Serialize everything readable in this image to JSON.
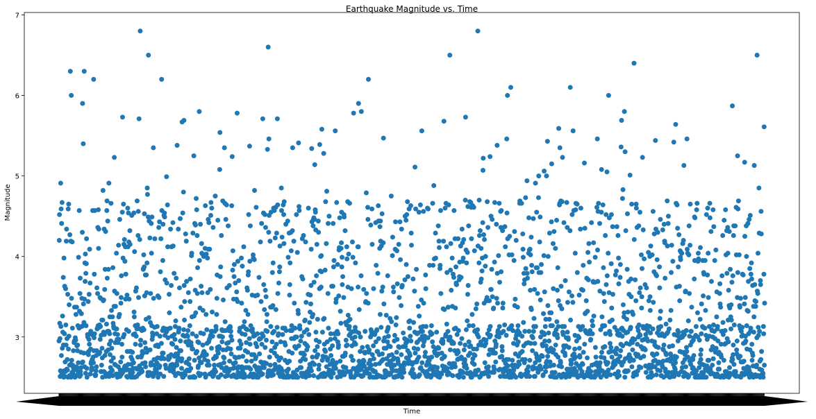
{
  "chart_data": {
    "type": "scatter",
    "title": "Earthquake Magnitude vs. Time",
    "xlabel": "Time",
    "ylabel": "Magnitude",
    "ylim": [
      2.3,
      7.03
    ],
    "yticks": [
      3,
      4,
      5,
      6,
      7
    ],
    "grid": false,
    "legend": "none",
    "x_tick_labels_overlapping": true,
    "marker_color": "#1f77b4",
    "n_points": 3000,
    "series": [
      {
        "notable_points": [
          {
            "x_index": 345,
            "y": 6.8
          },
          {
            "x_index": 1780,
            "y": 6.8
          },
          {
            "x_index": 889,
            "y": 6.6
          },
          {
            "x_index": 1661,
            "y": 6.5
          },
          {
            "x_index": 2967,
            "y": 6.5
          },
          {
            "x_index": 380,
            "y": 6.5
          },
          {
            "x_index": 2444,
            "y": 6.4
          },
          {
            "x_index": 1,
            "y": 4.2
          },
          {
            "x_index": 48,
            "y": 6.3
          },
          {
            "x_index": 107,
            "y": 6.3
          },
          {
            "x_index": 147,
            "y": 6.2
          },
          {
            "x_index": 436,
            "y": 6.2
          },
          {
            "x_index": 1315,
            "y": 6.2
          },
          {
            "x_index": 1920,
            "y": 6.1
          },
          {
            "x_index": 2173,
            "y": 6.1
          },
          {
            "x_index": 2336,
            "y": 6.0
          },
          {
            "x_index": 52,
            "y": 6.0
          },
          {
            "x_index": 1906,
            "y": 6.0
          },
          {
            "x_index": 100,
            "y": 5.9
          },
          {
            "x_index": 1273,
            "y": 5.9
          },
          {
            "x_index": 2862,
            "y": 5.87
          },
          {
            "x_index": 596,
            "y": 5.8
          },
          {
            "x_index": 2403,
            "y": 5.8
          },
          {
            "x_index": 1285,
            "y": 5.8
          }
        ]
      }
    ]
  }
}
